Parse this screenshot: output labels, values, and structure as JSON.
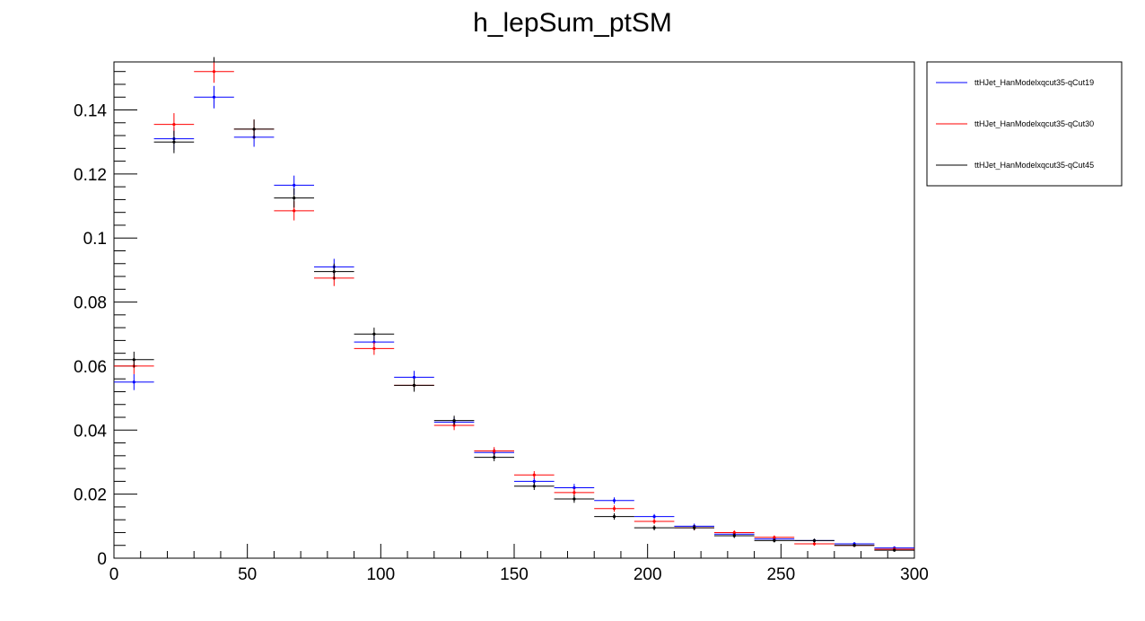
{
  "chart_data": {
    "type": "scatter",
    "title": "h_lepSum_ptSM",
    "xlabel": "",
    "ylabel": "",
    "xlim": [
      0,
      300
    ],
    "ylim": [
      0,
      0.155
    ],
    "grid": false,
    "legend_position": "top-right outside",
    "bin_width": 15,
    "x_tick_labels": [
      "0",
      "50",
      "100",
      "150",
      "200",
      "250",
      "300"
    ],
    "x_ticks": [
      0,
      50,
      100,
      150,
      200,
      250,
      300
    ],
    "y_tick_labels": [
      "0",
      "0.02",
      "0.04",
      "0.06",
      "0.08",
      "0.1",
      "0.12",
      "0.14"
    ],
    "y_ticks": [
      0,
      0.02,
      0.04,
      0.06,
      0.08,
      0.1,
      0.12,
      0.14
    ],
    "x": [
      7.5,
      22.5,
      37.5,
      52.5,
      67.5,
      82.5,
      97.5,
      112.5,
      127.5,
      142.5,
      157.5,
      172.5,
      187.5,
      202.5,
      217.5,
      232.5,
      247.5,
      262.5,
      277.5,
      292.5
    ],
    "series": [
      {
        "name": "ttHJet_HanModelxqcut35-qCut19",
        "color": "#0000ff",
        "values": [
          0.055,
          0.131,
          0.144,
          0.1315,
          0.1165,
          0.091,
          0.0675,
          0.0565,
          0.0425,
          0.033,
          0.024,
          0.022,
          0.018,
          0.013,
          0.01,
          0.0075,
          0.006,
          0.0055,
          0.0045,
          0.0032
        ],
        "errors": [
          0.0025,
          0.0035,
          0.0035,
          0.003,
          0.003,
          0.0025,
          0.002,
          0.002,
          0.0015,
          0.0012,
          0.0012,
          0.0012,
          0.001,
          0.0008,
          0.0008,
          0.0007,
          0.0006,
          0.0006,
          0.0005,
          0.0005
        ]
      },
      {
        "name": "ttHJet_HanModelxqcut35-qCut30",
        "color": "#ff0000",
        "values": [
          0.06,
          0.1355,
          0.152,
          0.134,
          0.1085,
          0.0875,
          0.0655,
          0.054,
          0.0415,
          0.0335,
          0.026,
          0.0205,
          0.0155,
          0.0115,
          0.0095,
          0.008,
          0.0065,
          0.0045,
          0.004,
          0.0028
        ],
        "errors": [
          0.0025,
          0.0035,
          0.0035,
          0.003,
          0.003,
          0.0025,
          0.002,
          0.002,
          0.0015,
          0.0012,
          0.0012,
          0.0012,
          0.001,
          0.0008,
          0.0008,
          0.0007,
          0.0006,
          0.0006,
          0.0005,
          0.0005
        ]
      },
      {
        "name": "ttHJet_HanModelxqcut35-qCut45",
        "color": "#000000",
        "values": [
          0.062,
          0.13,
          0.16,
          0.134,
          0.1125,
          0.0895,
          0.07,
          0.054,
          0.043,
          0.0315,
          0.0225,
          0.0185,
          0.013,
          0.0095,
          0.0095,
          0.007,
          0.0055,
          0.0055,
          0.004,
          0.0025
        ],
        "errors": [
          0.0025,
          0.0035,
          0.0035,
          0.003,
          0.003,
          0.0025,
          0.002,
          0.002,
          0.0015,
          0.0012,
          0.0012,
          0.0012,
          0.001,
          0.0008,
          0.0008,
          0.0007,
          0.0006,
          0.0006,
          0.0005,
          0.0005
        ]
      }
    ]
  }
}
